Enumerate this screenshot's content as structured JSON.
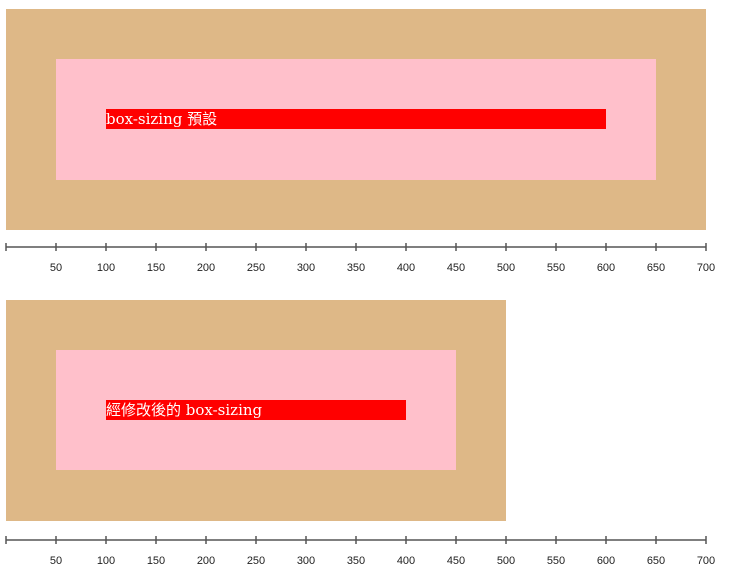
{
  "demo_default": {
    "label": "box-sizing 預設"
  },
  "demo_modified": {
    "label": "經修改後的 box-sizing"
  },
  "ruler_top": {
    "ticks": [
      "50",
      "100",
      "150",
      "200",
      "250",
      "300",
      "350",
      "400",
      "450",
      "500",
      "550",
      "600",
      "650",
      "700"
    ]
  },
  "ruler_bottom": {
    "ticks": [
      "50",
      "100",
      "150",
      "200",
      "250",
      "300",
      "350",
      "400",
      "450",
      "500",
      "550",
      "600",
      "650",
      "700"
    ]
  },
  "colors": {
    "outer_box": "#deb887",
    "inner_box": "#ffc0cb",
    "content_box": "#ff0000",
    "ruler_line": "#555555"
  }
}
